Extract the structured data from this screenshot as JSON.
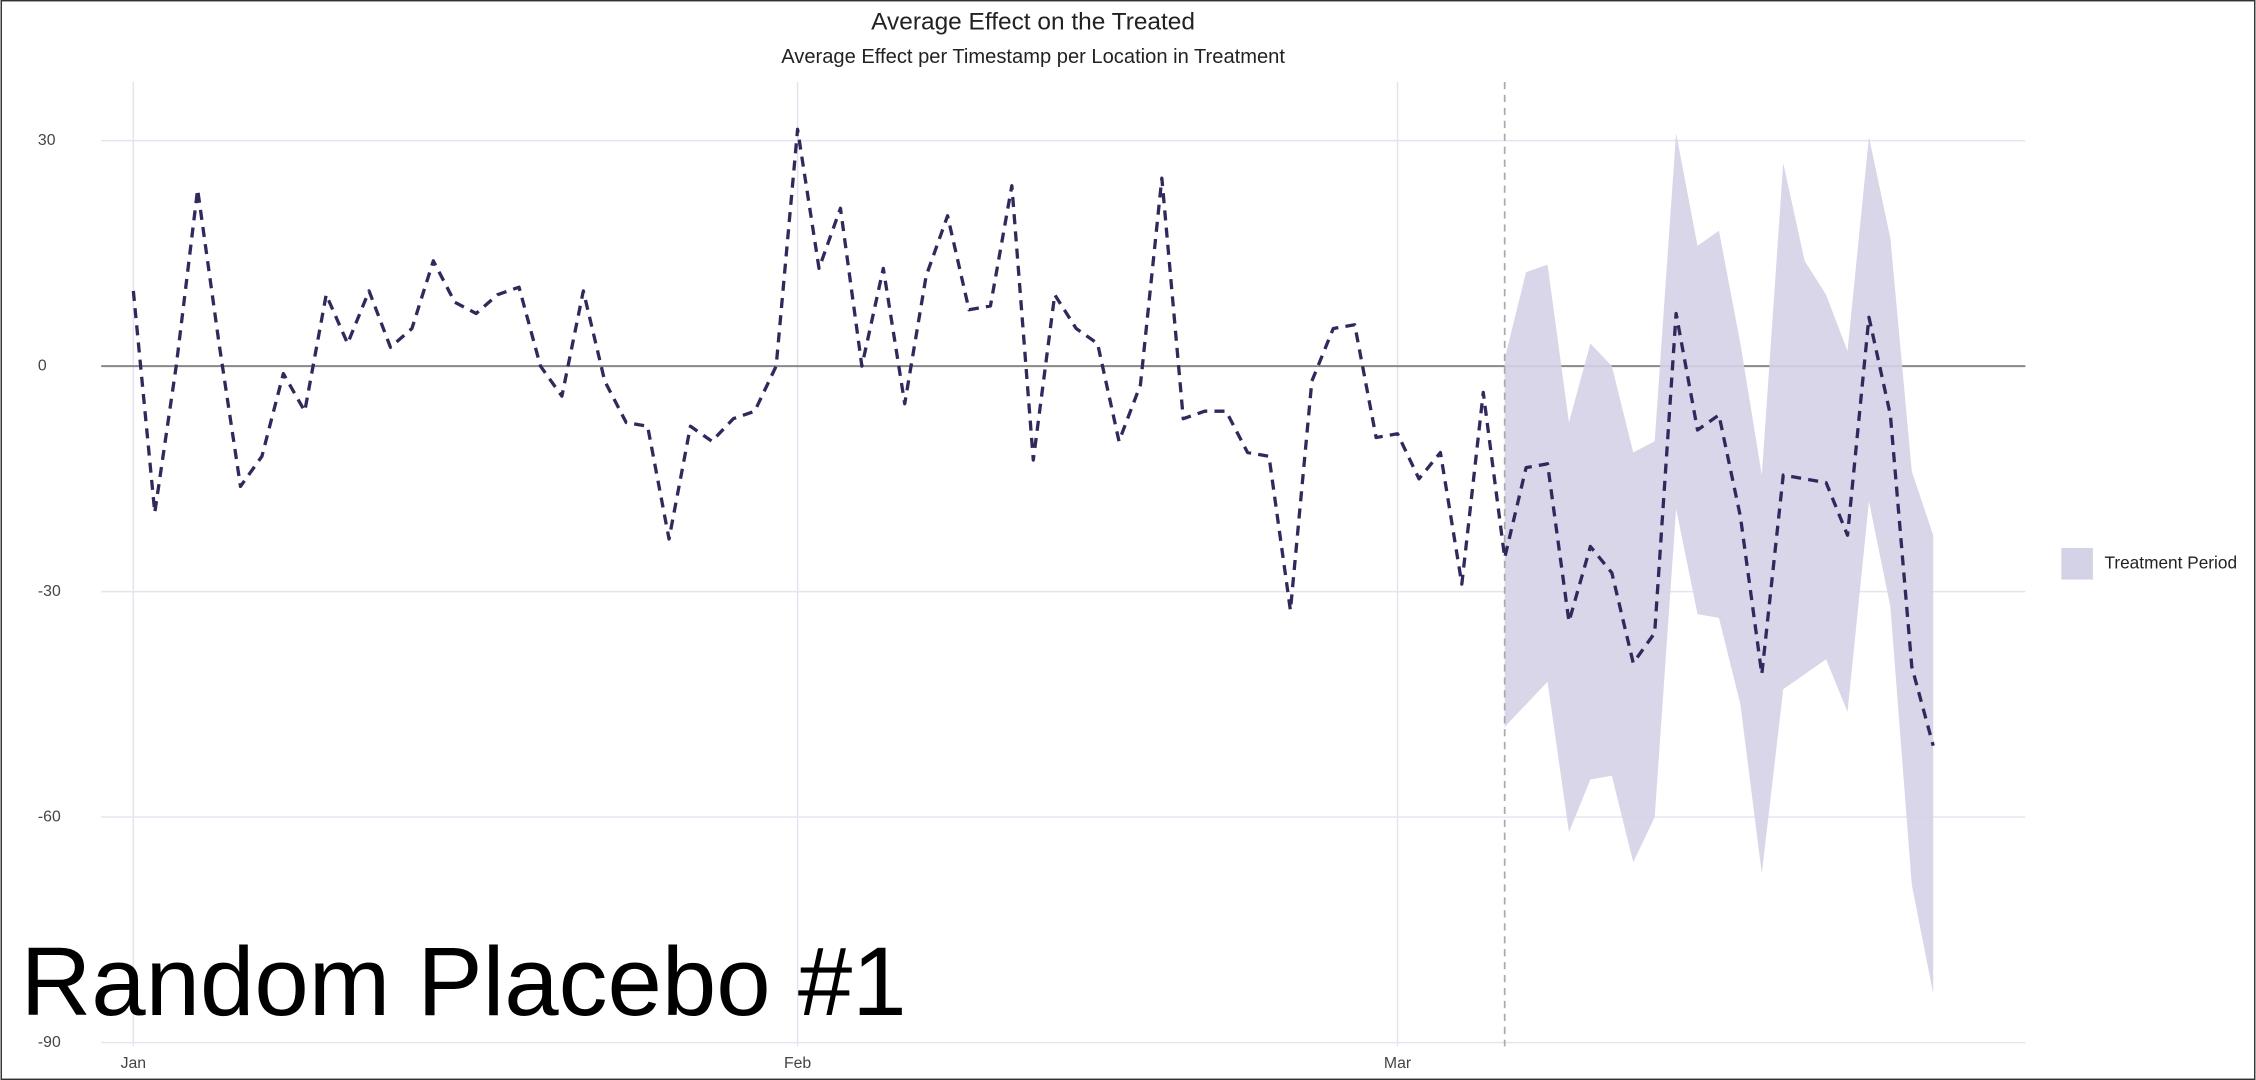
{
  "chart_data": {
    "type": "line",
    "title": "Average Effect on the Treated",
    "subtitle": "Average Effect per Timestamp per Location in Treatment",
    "overlay_text": "Random Placebo #1",
    "x": [
      0,
      1,
      2,
      3,
      4,
      5,
      6,
      7,
      8,
      9,
      10,
      11,
      12,
      13,
      14,
      15,
      16,
      17,
      18,
      19,
      20,
      21,
      22,
      23,
      24,
      25,
      26,
      27,
      28,
      29,
      30,
      31,
      32,
      33,
      34,
      35,
      36,
      37,
      38,
      39,
      40,
      41,
      42,
      43,
      44,
      45,
      46,
      47,
      48,
      49,
      50,
      51,
      52,
      53,
      54,
      55,
      56,
      57,
      58,
      59,
      60,
      61,
      62,
      63,
      64,
      65,
      66,
      67,
      68,
      69,
      70,
      71,
      72,
      73,
      74,
      75,
      76,
      77,
      78,
      79,
      80,
      81,
      82,
      83,
      84
    ],
    "xlim": [
      -1.5,
      88.3
    ],
    "xticks": [
      {
        "value": 0,
        "label": "Jan"
      },
      {
        "value": 31,
        "label": "Feb"
      },
      {
        "value": 59,
        "label": "Mar"
      }
    ],
    "ylim": [
      -90.5,
      37.8
    ],
    "yticks": [
      -90,
      -60,
      -30,
      0,
      30
    ],
    "grid": true,
    "zero_line": 0,
    "treatment_start": 64,
    "legend": "right",
    "series": [
      {
        "color": "#2f2a5c",
        "values": [
          10,
          -19.5,
          0,
          23.5,
          3,
          -16,
          -12,
          -1,
          -6,
          9.5,
          3,
          10,
          2.5,
          5,
          14,
          8.5,
          7,
          9.5,
          10.5,
          0,
          -4,
          10,
          -2,
          -7.5,
          -8,
          -23,
          -8,
          -10,
          -7,
          -6,
          0,
          31.5,
          13,
          21,
          0,
          13,
          -5,
          12,
          20,
          7.5,
          8,
          24,
          -12.5,
          9.5,
          5,
          3,
          -10,
          -2.5,
          25,
          -7,
          -6,
          -6,
          -11.5,
          -12,
          -32.5,
          -2,
          5,
          5.5,
          -9.5,
          -9,
          -15,
          -11.5,
          -29,
          -3.5,
          -25.5,
          -13.5,
          -13,
          -34,
          -24,
          -27.5,
          -39.5,
          -35.5,
          7,
          -8.5,
          -6.5,
          -20,
          -41,
          -14.5,
          -15,
          -15.5,
          -22.5,
          6.5,
          -6.5,
          -40,
          -50.5
        ]
      }
    ],
    "band": {
      "name": "Treatment Period",
      "color": "#d4d2e6",
      "x": [
        64,
        65,
        66,
        67,
        68,
        69,
        70,
        71,
        72,
        73,
        74,
        75,
        76,
        77,
        78,
        79,
        80,
        81,
        82,
        83,
        84
      ],
      "upper": [
        1,
        12.5,
        13.5,
        -7.5,
        3,
        0,
        -11.5,
        -10,
        31,
        16,
        18,
        3,
        -14.5,
        27,
        14,
        9.5,
        2,
        30.5,
        17,
        -14,
        -22.5
      ],
      "lower": [
        -48,
        -45,
        -42,
        -62,
        -55,
        -54.5,
        -66,
        -60,
        -19,
        -33,
        -33.5,
        -45,
        -67.5,
        -43,
        -41,
        -39,
        -46,
        -18,
        -32,
        -69,
        -83.5
      ]
    }
  }
}
